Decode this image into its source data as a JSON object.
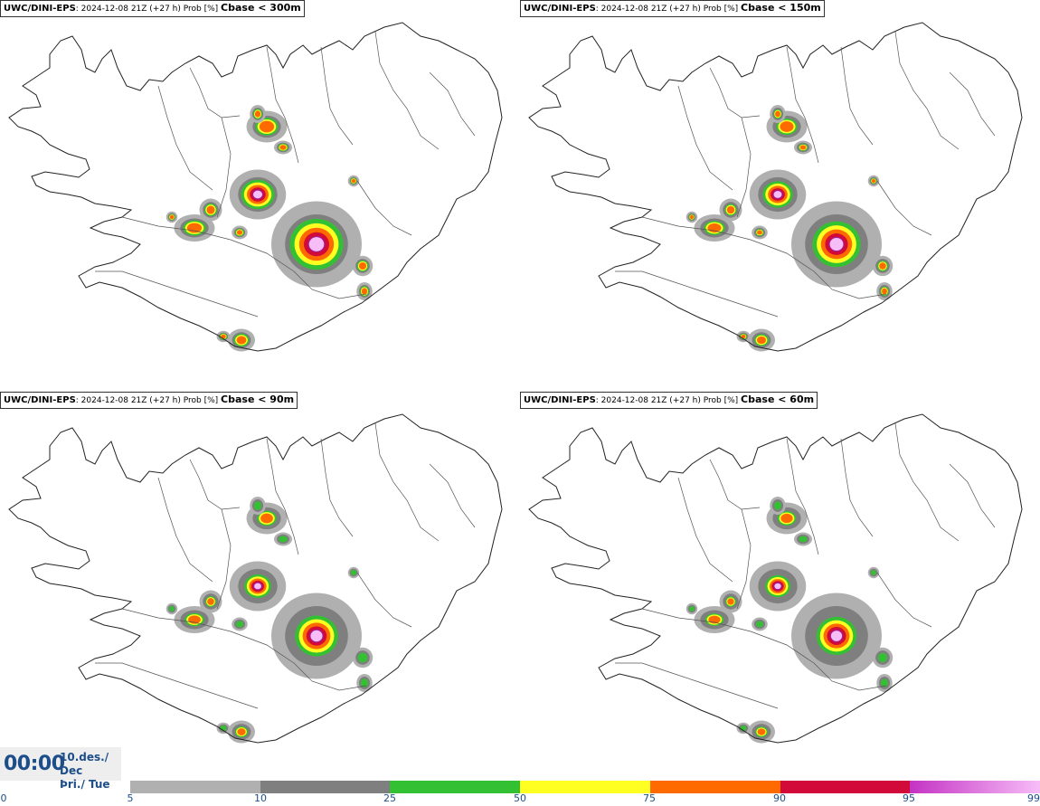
{
  "panels": [
    {
      "model": "UWC/DINI-EPS",
      "run": ": 2024-12-08 21Z (+27 h) Prob [%]",
      "cbase": "Cbase < 300m",
      "scale": 1.0
    },
    {
      "model": "UWC/DINI-EPS",
      "run": ": 2024-12-08 21Z (+27 h) Prob [%]",
      "cbase": "Cbase < 150m",
      "scale": 0.9
    },
    {
      "model": "UWC/DINI-EPS",
      "run": ": 2024-12-08 21Z (+27 h) Prob [%]",
      "cbase": "Cbase < 90m",
      "scale": 0.8
    },
    {
      "model": "UWC/DINI-EPS",
      "run": ": 2024-12-08 21Z (+27 h) Prob [%]",
      "cbase": "Cbase < 60m",
      "scale": 0.75
    }
  ],
  "time": {
    "clock": "00:00",
    "date_line1": "10.des./ Dec",
    "date_line2": "Þri./ Tue"
  },
  "colorbar": {
    "labels": [
      "0",
      "5",
      "10",
      "25",
      "50",
      "75",
      "90",
      "95",
      "99"
    ],
    "segments": [
      {
        "from": "5",
        "to": "10",
        "color": "#b0b0b0"
      },
      {
        "from": "10",
        "to": "25",
        "color": "#7f7f7f"
      },
      {
        "from": "25",
        "to": "50",
        "color": "#33c133"
      },
      {
        "from": "50",
        "to": "75",
        "color": "#ffff22"
      },
      {
        "from": "75",
        "to": "90",
        "color": "#ff6a00"
      },
      {
        "from": "90",
        "to": "95",
        "color": "#d20a3a"
      },
      {
        "from": "95",
        "to": "99",
        "color": "#c433c4",
        "to_color": "#f7bdf7"
      }
    ]
  }
}
